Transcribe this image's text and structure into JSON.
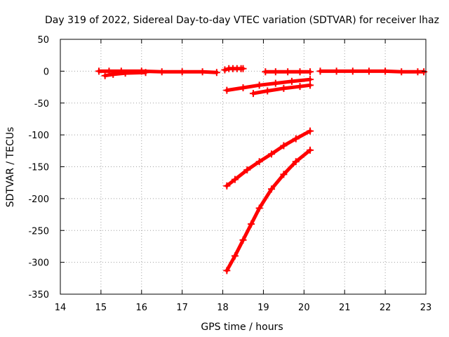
{
  "chart_data": {
    "type": "scatter",
    "title": "Day 319 of 2022, Sidereal Day-to-day VTEC variation (SDTVAR) for receiver lhaz",
    "xlabel": "GPS time / hours",
    "ylabel": "SDTVAR / TECUs",
    "xlim": [
      14,
      23
    ],
    "ylim": [
      -350,
      50
    ],
    "x_ticks": [
      "14",
      "15",
      "16",
      "17",
      "18",
      "19",
      "20",
      "21",
      "22",
      "23"
    ],
    "y_ticks": [
      "50",
      "0",
      "-50",
      "-100",
      "-150",
      "-200",
      "-250",
      "-300",
      "-350"
    ],
    "grid": true,
    "marker": "plus",
    "color": "#ff0000",
    "series": [
      {
        "x": [
          14.95,
          15.2,
          15.5,
          16.0,
          16.5,
          17.0,
          17.5,
          17.85
        ],
        "y": [
          0,
          0,
          0,
          0,
          -1,
          -1,
          -1,
          -2
        ]
      },
      {
        "x": [
          15.1,
          15.3,
          15.6,
          16.1
        ],
        "y": [
          -7,
          -5,
          -3,
          -2
        ]
      },
      {
        "x": [
          18.05,
          18.15,
          18.25,
          18.35,
          18.45,
          18.5
        ],
        "y": [
          2,
          4,
          4,
          4,
          4,
          4
        ]
      },
      {
        "x": [
          19.05,
          19.3,
          19.6,
          19.9,
          20.15
        ],
        "y": [
          -1,
          -1,
          -1,
          -1,
          -1
        ]
      },
      {
        "x": [
          20.4,
          20.8,
          21.2,
          21.6,
          22.0,
          22.4,
          22.8,
          22.95
        ],
        "y": [
          0,
          0,
          0,
          0,
          0,
          -1,
          -1,
          -1
        ]
      },
      {
        "x": [
          18.1,
          18.5,
          18.9,
          19.3,
          19.7,
          20.15
        ],
        "y": [
          -30,
          -26,
          -22,
          -19,
          -16,
          -13
        ]
      },
      {
        "x": [
          18.75,
          19.1,
          19.5,
          19.9,
          20.15
        ],
        "y": [
          -35,
          -31,
          -27,
          -24,
          -22
        ]
      },
      {
        "x": [
          18.1,
          18.3,
          18.6,
          18.9,
          19.2,
          19.5,
          19.8,
          20.15
        ],
        "y": [
          -180,
          -170,
          -155,
          -142,
          -130,
          -117,
          -106,
          -94
        ]
      },
      {
        "x": [
          18.1,
          18.3,
          18.5,
          18.7,
          18.9,
          19.2,
          19.5,
          19.8,
          20.15
        ],
        "y": [
          -313,
          -290,
          -265,
          -240,
          -215,
          -185,
          -162,
          -142,
          -124
        ]
      }
    ]
  }
}
